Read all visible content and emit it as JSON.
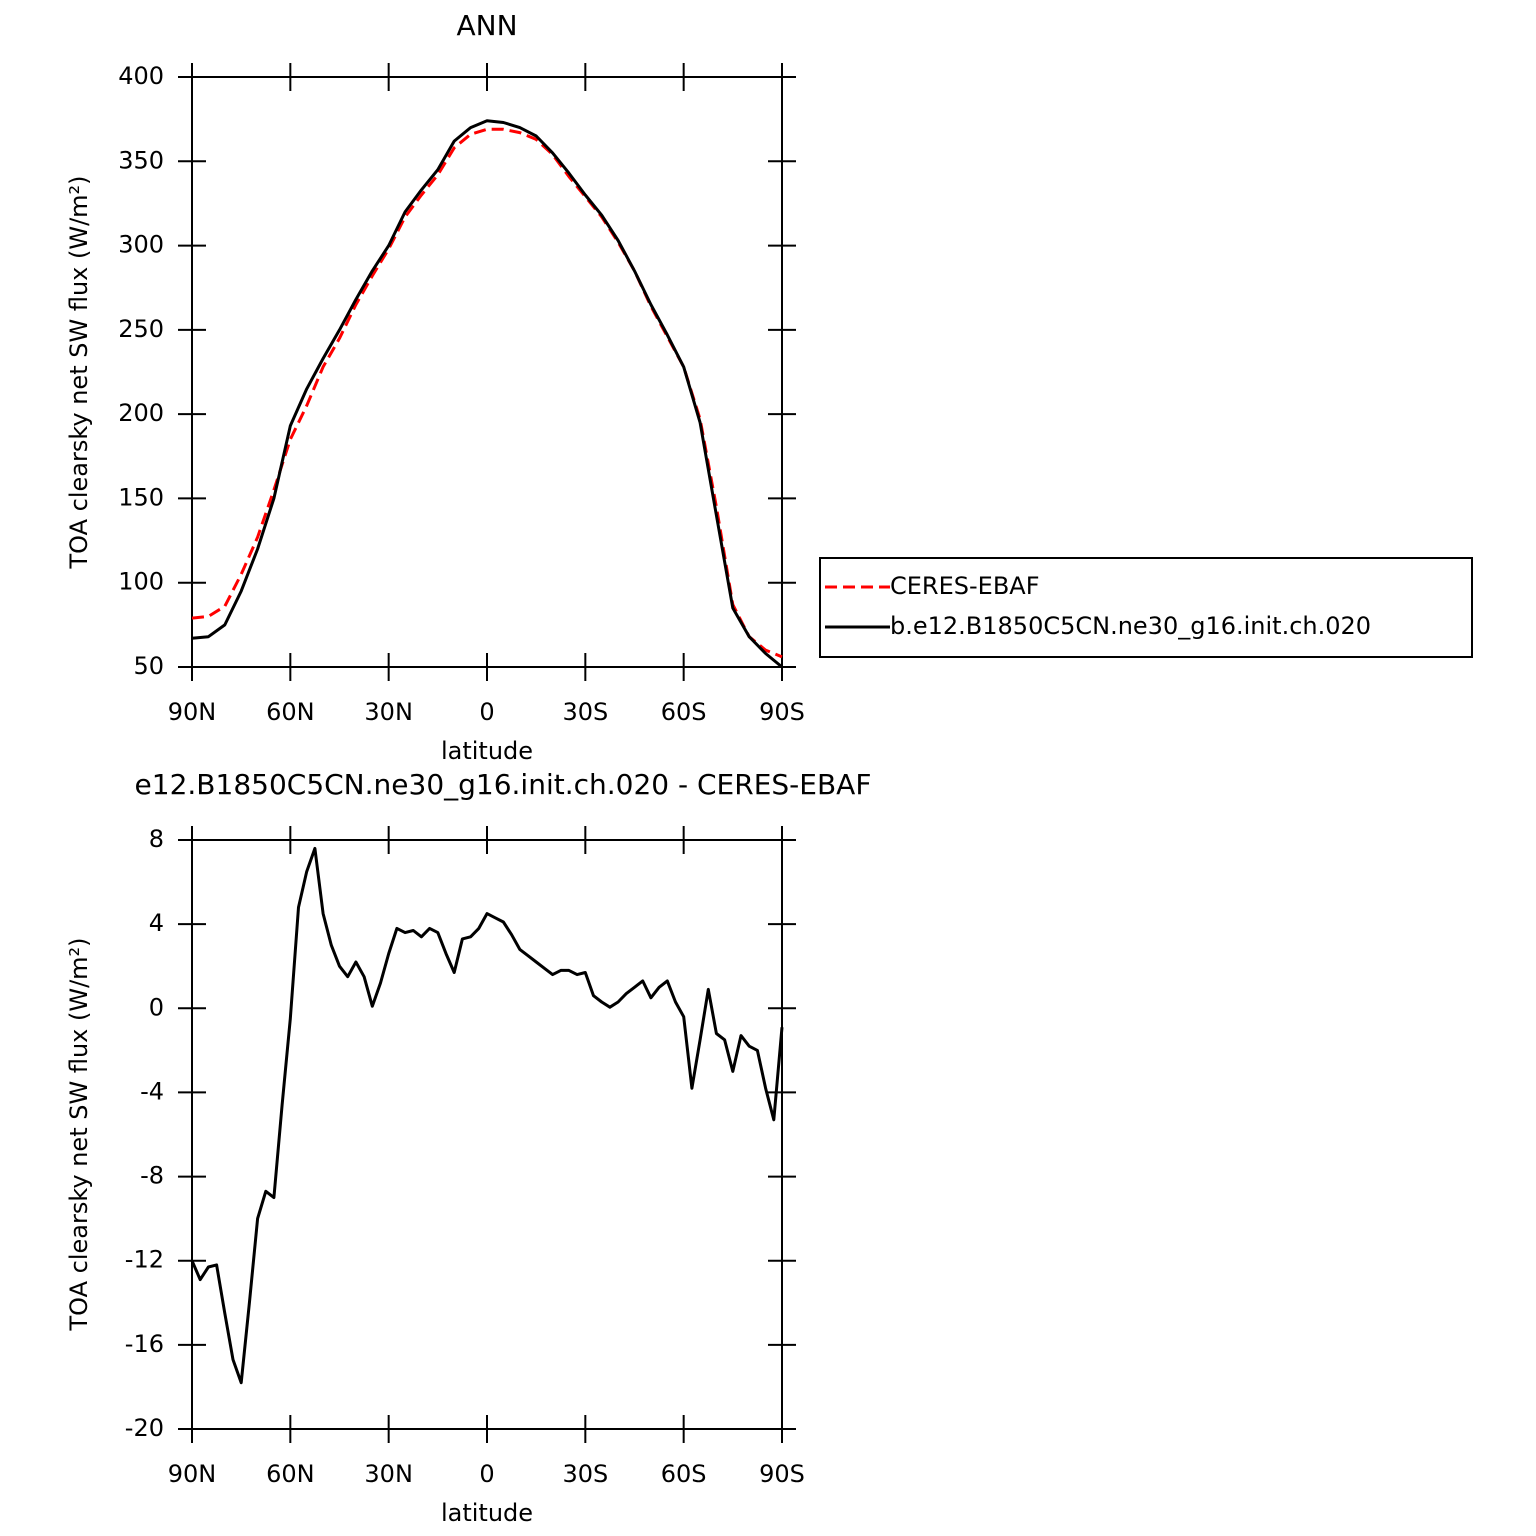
{
  "chart_data": [
    {
      "type": "line",
      "title": "ANN",
      "x_label": "latitude",
      "y_label": "TOA clearsky net SW flux (W/m²)",
      "x": [
        90,
        85,
        80,
        75,
        70,
        65,
        60,
        55,
        50,
        45,
        40,
        35,
        30,
        25,
        20,
        15,
        10,
        5,
        0,
        -5,
        -10,
        -15,
        -20,
        -25,
        -30,
        -35,
        -40,
        -45,
        -50,
        -55,
        -60,
        -65,
        -70,
        -75,
        -80,
        -85,
        -90
      ],
      "series": [
        {
          "name": "CERES-EBAF",
          "color": "#ff0000",
          "line_style": "dashed",
          "values": [
            79,
            80,
            86,
            105,
            127,
            155,
            185,
            205,
            228,
            245,
            265,
            282,
            298,
            317,
            330,
            342,
            358,
            366,
            369,
            369,
            367,
            363,
            354,
            341,
            329,
            317,
            302,
            285,
            264,
            246,
            228,
            197,
            145,
            87,
            68,
            60,
            56
          ]
        },
        {
          "name": "b.e12.B1850C5CN.ne30_g16.init.ch.020",
          "color": "#000000",
          "line_style": "solid",
          "values": [
            67,
            68,
            75,
            95,
            120,
            150,
            193,
            215,
            233,
            250,
            268,
            285,
            300,
            320,
            333,
            345,
            362,
            370,
            374,
            373,
            370,
            365,
            355,
            343,
            330,
            318,
            303,
            285,
            265,
            247,
            228,
            195,
            140,
            85,
            68,
            58,
            50
          ]
        }
      ],
      "xlim": [
        90,
        -90
      ],
      "xticks": [
        {
          "value": 90,
          "label": "90N"
        },
        {
          "value": 60,
          "label": "60N"
        },
        {
          "value": 30,
          "label": "30N"
        },
        0,
        {
          "value": -30,
          "label": "30S"
        },
        {
          "value": -60,
          "label": "60S"
        },
        {
          "value": -90,
          "label": "90S"
        }
      ],
      "ylim": [
        50,
        400
      ],
      "yticks": [
        50,
        100,
        150,
        200,
        250,
        300,
        350,
        400
      ],
      "legend": "right"
    },
    {
      "type": "line",
      "title": "e12.B1850C5CN.ne30_g16.init.ch.020 - CERES-EBAF",
      "x_label": "latitude",
      "y_label": "TOA clearsky net SW flux (W/m²)",
      "x": [
        90,
        87.5,
        85,
        82.5,
        80,
        77.5,
        75,
        72.5,
        70,
        67.5,
        65,
        62.5,
        60,
        57.5,
        55,
        52.5,
        50,
        47.5,
        45,
        42.5,
        40,
        37.5,
        35,
        32.5,
        30,
        27.5,
        25,
        22.5,
        20,
        17.5,
        15,
        12.5,
        10,
        7.5,
        5,
        2.5,
        0,
        -2.5,
        -5,
        -7.5,
        -10,
        -12.5,
        -15,
        -17.5,
        -20,
        -22.5,
        -25,
        -27.5,
        -30,
        -32.5,
        -35,
        -37.5,
        -40,
        -42.5,
        -45,
        -47.5,
        -50,
        -52.5,
        -55,
        -57.5,
        -60,
        -62.5,
        -65,
        -67.5,
        -70,
        -72.5,
        -75,
        -77.5,
        -80,
        -82.5,
        -85,
        -87.5,
        -90
      ],
      "values": [
        -12,
        -12.9,
        -12.3,
        -12.2,
        -14.5,
        -16.7,
        -17.8,
        -14,
        -10,
        -8.7,
        -9,
        -4.6,
        -0.5,
        4.8,
        6.5,
        7.6,
        4.5,
        3,
        2,
        1.5,
        2.2,
        1.5,
        0.1,
        1.2,
        2.6,
        3.8,
        3.6,
        3.7,
        3.4,
        3.8,
        3.6,
        2.6,
        1.7,
        3.3,
        3.4,
        3.8,
        4.5,
        4.3,
        4.1,
        3.5,
        2.8,
        2.5,
        2.2,
        1.9,
        1.6,
        1.8,
        1.8,
        1.6,
        1.7,
        0.6,
        0.3,
        0.05,
        0.3,
        0.7,
        1.0,
        1.3,
        0.5,
        1.0,
        1.3,
        0.3,
        -0.4,
        -3.8,
        -1.5,
        0.9,
        -1.2,
        -1.5,
        -3.0,
        -1.3,
        -1.8,
        -2.0,
        -3.8,
        -5.3,
        -0.9
      ],
      "color": "#000000",
      "xlim": [
        90,
        -90
      ],
      "xticks": [
        {
          "value": 90,
          "label": "90N"
        },
        {
          "value": 60,
          "label": "60N"
        },
        {
          "value": 30,
          "label": "30N"
        },
        0,
        {
          "value": -30,
          "label": "30S"
        },
        {
          "value": -60,
          "label": "60S"
        },
        {
          "value": -90,
          "label": "90S"
        }
      ],
      "ylim": [
        -20,
        8
      ],
      "yticks": [
        -20,
        -16,
        -12,
        -8,
        -4,
        0,
        4,
        8
      ]
    }
  ]
}
